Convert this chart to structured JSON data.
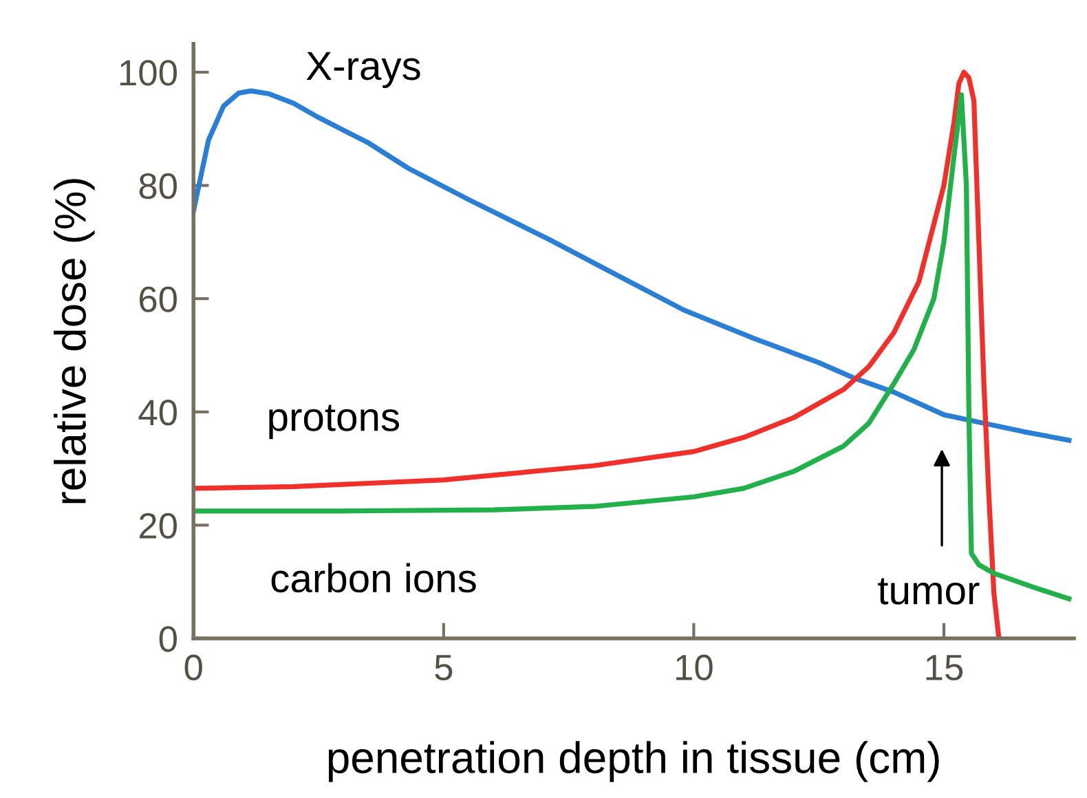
{
  "chart_data": {
    "type": "line",
    "xlabel": "penetration depth in tissue (cm)",
    "ylabel": "relative dose (%)",
    "xlim": [
      0,
      17.6
    ],
    "ylim": [
      0,
      105
    ],
    "xticks": [
      0,
      5,
      10,
      15
    ],
    "yticks": [
      0,
      20,
      40,
      60,
      80,
      100
    ],
    "grid": false,
    "legend": false,
    "marker": "none",
    "line_style": "solid",
    "series": [
      {
        "name": "X-rays",
        "color": "#2a7fd4",
        "x": [
          0,
          0.3,
          0.6,
          0.9,
          1.15,
          1.5,
          2.0,
          2.5,
          3.5,
          4.3,
          5.5,
          7.1,
          8.5,
          9.8,
          11.2,
          12.5,
          13.2,
          14.0,
          15.0,
          15.8,
          16.6,
          17.5
        ],
        "values": [
          75.5,
          88,
          94,
          96.3,
          96.7,
          96.2,
          94.5,
          92,
          87.5,
          83,
          77.5,
          70.5,
          64,
          58,
          53,
          48.7,
          46,
          43.5,
          39.5,
          38,
          36.5,
          35
        ]
      },
      {
        "name": "protons",
        "color": "#f0302a",
        "x": [
          0,
          2,
          5,
          8,
          10,
          11,
          12,
          13,
          13.5,
          14,
          14.5,
          15,
          15.2,
          15.3,
          15.4,
          15.5,
          15.6,
          15.7,
          15.8,
          15.9,
          16,
          16.1
        ],
        "values": [
          26.5,
          26.8,
          28,
          30.5,
          33,
          35.5,
          39,
          44,
          48,
          54,
          63,
          80,
          91,
          98,
          100,
          99,
          95,
          70,
          45,
          25,
          8,
          0
        ]
      },
      {
        "name": "carbon ions",
        "color": "#22b04a",
        "x": [
          0,
          3,
          6,
          8,
          10,
          11,
          12,
          13,
          13.5,
          14,
          14.4,
          14.8,
          15,
          15.2,
          15.35,
          15.45,
          15.5,
          15.55,
          15.7,
          16,
          16.8,
          17.5
        ],
        "values": [
          22.5,
          22.5,
          22.7,
          23.3,
          25,
          26.5,
          29.5,
          34,
          38,
          45,
          51,
          60,
          70,
          85,
          96,
          80,
          40,
          15,
          13,
          11.5,
          9,
          7
        ]
      }
    ],
    "annotations": [
      "tumor"
    ]
  }
}
